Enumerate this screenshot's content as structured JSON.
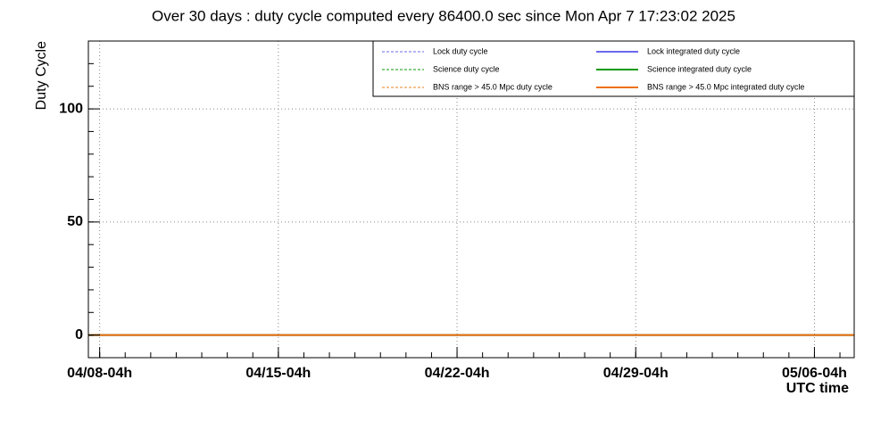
{
  "chart_data": {
    "type": "line",
    "title": "Over 30 days : duty cycle computed every 86400.0 sec since Mon Apr  7 17:23:02 2025",
    "y_label": "Duty Cycle",
    "x_label": "UTC time",
    "xlim": [
      "2025-04-07T17:23:02Z",
      "2025-05-07T17:23:02Z"
    ],
    "xticks": [
      {
        "value": "2025-04-08T04:00:00Z",
        "label": "04/08-04h"
      },
      {
        "value": "2025-04-15T04:00:00Z",
        "label": "04/15-04h"
      },
      {
        "value": "2025-04-22T04:00:00Z",
        "label": "04/22-04h"
      },
      {
        "value": "2025-04-29T04:00:00Z",
        "label": "04/29-04h"
      },
      {
        "value": "2025-05-06T04:00:00Z",
        "label": "05/06-04h"
      }
    ],
    "ylim": [
      -10,
      130
    ],
    "yticks": [
      0,
      50,
      100
    ],
    "grid": true,
    "legend": "top-right",
    "x": [
      "2025-04-07T17:23:02Z",
      "2025-05-07T17:23:02Z"
    ],
    "series": [
      {
        "name": "Lock duty cycle",
        "color": "#6a6aee",
        "dashed": true,
        "values": [
          0,
          0
        ]
      },
      {
        "name": "Lock integrated duty cycle",
        "color": "#6a6aee",
        "dashed": false,
        "values": [
          0,
          0
        ]
      },
      {
        "name": "Science duty cycle",
        "color": "#0a9a0a",
        "dashed": true,
        "values": [
          0,
          0
        ]
      },
      {
        "name": "Science integrated duty cycle",
        "color": "#0a9a0a",
        "dashed": false,
        "values": [
          0,
          0
        ]
      },
      {
        "name": "BNS range > 45.0 Mpc duty cycle",
        "color": "#e8861c",
        "dashed": true,
        "values": [
          0,
          0
        ]
      },
      {
        "name": "BNS range > 45.0 Mpc integrated duty cycle",
        "color": "#ee7010",
        "dashed": false,
        "values": [
          0,
          0
        ]
      }
    ]
  }
}
